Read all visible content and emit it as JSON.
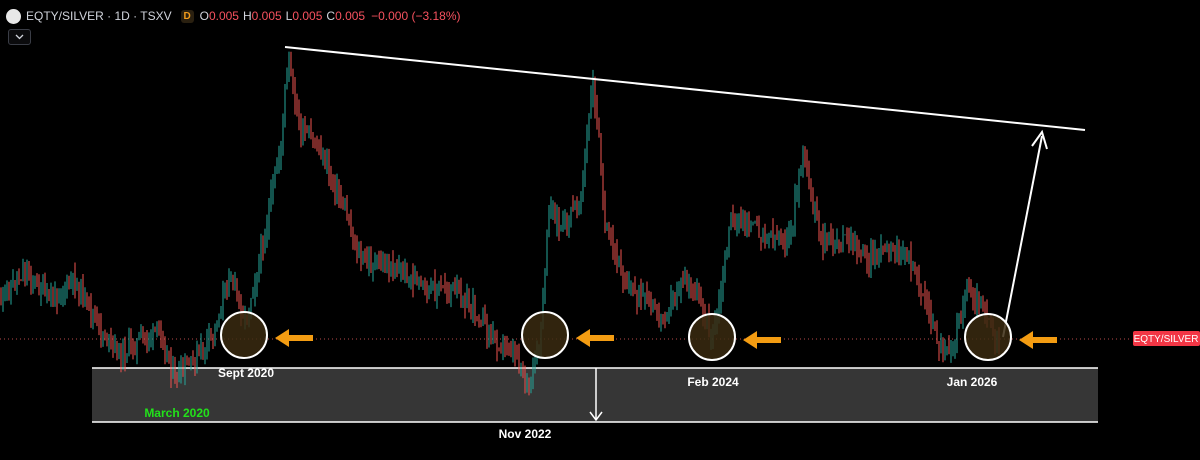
{
  "header": {
    "symbol_line": "EQTY/SILVER · 1D · TSXV",
    "interval_badge": "D",
    "ohlc": [
      {
        "key": "O",
        "value": "0.005"
      },
      {
        "key": "H",
        "value": "0.005"
      },
      {
        "key": "L",
        "value": "0.005"
      },
      {
        "key": "C",
        "value": "0.005"
      }
    ],
    "change": "−0.000 (−3.18%)"
  },
  "price_label": "EQTY/SILVER",
  "colors": {
    "up": "#26a69a",
    "down": "#ef5350",
    "support_line": "#ffffff",
    "support_zone": "#363636",
    "circle_fill": "#3a2a10",
    "arrow": "#f39c12",
    "price_tag": "#f23645",
    "green_label": "#22e11a"
  },
  "chart_data": {
    "type": "candlestick",
    "x": [
      2017.0,
      2017.2,
      2017.4,
      2017.6,
      2017.8,
      2018.0,
      2018.2,
      2018.4,
      2018.6,
      2018.8,
      2019.0,
      2019.2,
      2019.4,
      2019.6,
      2019.8,
      2020.0,
      2020.2,
      2020.4,
      2020.6,
      2020.8,
      2021.0,
      2021.2,
      2021.4,
      2021.6,
      2021.8,
      2022.0,
      2022.2,
      2022.4,
      2022.6,
      2022.8,
      2022.9,
      2023.0,
      2023.2,
      2023.4,
      2023.6,
      2023.8,
      2024.0,
      2024.1,
      2024.2,
      2024.4,
      2024.6,
      2024.8,
      2025.0,
      2025.2,
      2025.4,
      2025.6,
      2025.8,
      2026.0,
      2026.15
    ],
    "y": [
      290,
      260,
      300,
      265,
      280,
      250,
      260,
      255,
      240,
      235,
      255,
      270,
      330,
      300,
      350,
      340,
      360,
      330,
      230,
      420,
      405,
      280,
      370,
      380,
      400,
      330,
      320,
      300,
      280,
      220,
      200,
      330,
      300,
      250,
      300,
      350,
      380,
      350,
      300,
      320,
      270,
      290,
      300,
      250,
      320,
      340,
      360,
      350,
      355
    ],
    "annotations": [
      {
        "text": "Sept 2020",
        "color": "#ffffff"
      },
      {
        "text": "March 2020",
        "color": "#22e11a"
      },
      {
        "text": "Nov 2022",
        "color": "#ffffff"
      },
      {
        "text": "Feb 2024",
        "color": "#ffffff"
      },
      {
        "text": "Jan 2026",
        "color": "#ffffff"
      }
    ],
    "grid": false
  }
}
